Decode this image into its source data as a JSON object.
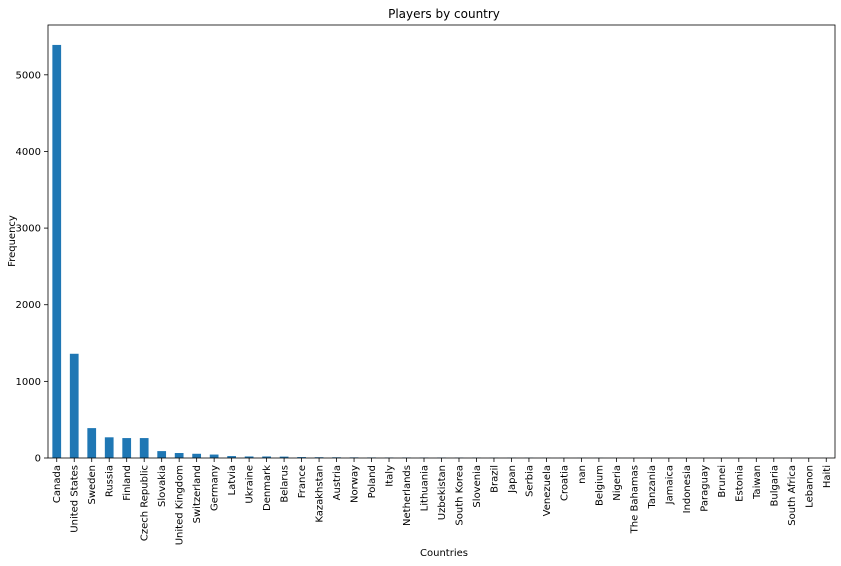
{
  "chart_data": {
    "type": "bar",
    "title": "Players by country",
    "xlabel": "Countries",
    "ylabel": "Frequency",
    "ylim": [
      0,
      5650
    ],
    "yticks": [
      0,
      1000,
      2000,
      3000,
      4000,
      5000
    ],
    "bar_color": "#1f77b4",
    "grid": false,
    "legend": "none",
    "categories": [
      "Canada",
      "United States",
      "Sweden",
      "Russia",
      "Finland",
      "Czech Republic",
      "Slovakia",
      "United Kingdom",
      "Switzerland",
      "Germany",
      "Latvia",
      "Ukraine",
      "Denmark",
      "Belarus",
      "France",
      "Kazakhstan",
      "Austria",
      "Norway",
      "Poland",
      "Italy",
      "Netherlands",
      "Lithuania",
      "Uzbekistan",
      "South Korea",
      "Slovenia",
      "Brazil",
      "Japan",
      "Serbia",
      "Venezuela",
      "Croatia",
      "nan",
      "Belgium",
      "Nigeria",
      "The Bahamas",
      "Tanzania",
      "Jamaica",
      "Indonesia",
      "Paraguay",
      "Brunei",
      "Estonia",
      "Taiwan",
      "Bulgaria",
      "South Africa",
      "Lebanon",
      "Haiti"
    ],
    "values": [
      5390,
      1360,
      390,
      270,
      260,
      260,
      90,
      65,
      55,
      45,
      25,
      20,
      20,
      18,
      12,
      10,
      9,
      8,
      7,
      6,
      6,
      5,
      5,
      4,
      4,
      3,
      3,
      3,
      2,
      2,
      2,
      2,
      1,
      1,
      1,
      1,
      1,
      1,
      1,
      1,
      1,
      1,
      1,
      1,
      1
    ]
  }
}
